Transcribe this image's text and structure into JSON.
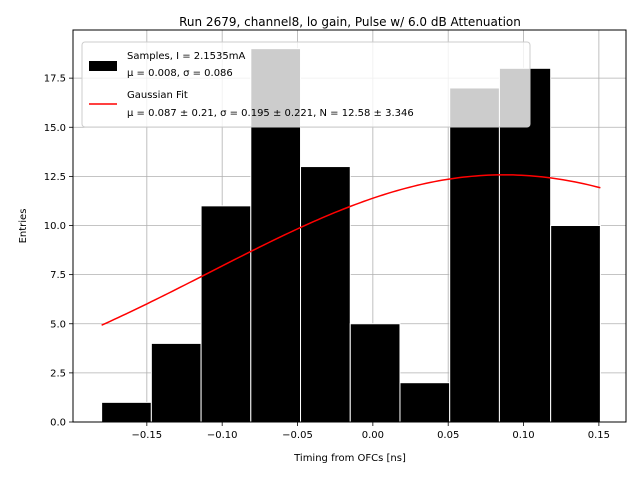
{
  "chart_data": {
    "type": "bar",
    "title": "Run 2679, channel8, lo gain, Pulse w/ 6.0 dB Attenuation",
    "xlabel": "Timing from OFCs [ns]",
    "ylabel": "Entries",
    "xlim": [
      -0.199,
      0.168
    ],
    "ylim": [
      0,
      19.95
    ],
    "grid": true,
    "bin_edges": [
      -0.18,
      -0.147,
      -0.114,
      -0.081,
      -0.048,
      -0.015,
      0.018,
      0.051,
      0.084,
      0.118,
      0.151
    ],
    "counts": [
      1,
      4,
      11,
      19,
      13,
      5,
      2,
      17,
      18,
      10
    ],
    "x_ticks": [
      -0.15,
      -0.1,
      -0.05,
      0.0,
      0.05,
      0.1,
      0.15
    ],
    "x_tick_labels": [
      "−0.15",
      "−0.10",
      "−0.05",
      "0.00",
      "0.05",
      "0.10",
      "0.15"
    ],
    "y_ticks": [
      0.0,
      2.5,
      5.0,
      7.5,
      10.0,
      12.5,
      15.0,
      17.5
    ],
    "y_tick_labels": [
      "0.0",
      "2.5",
      "5.0",
      "7.5",
      "10.0",
      "12.5",
      "15.0",
      "17.5"
    ],
    "fit": {
      "type": "gaussian",
      "mu": 0.087,
      "sigma": 0.195,
      "N": 12.58,
      "x_range": [
        -0.18,
        0.151
      ],
      "color": "#ff0000"
    },
    "bar_fill": "#000000",
    "bar_edge": "#ffffff",
    "legend": {
      "placement": "top-left",
      "entries": [
        {
          "kind": "patch",
          "line1": "Samples, I = 2.1535mA",
          "line2": "μ = 0.008, σ = 0.086"
        },
        {
          "kind": "line",
          "line1": "Gaussian Fit",
          "line2": "μ = 0.087 ± 0.21, σ = 0.195 ± 0.221, N = 12.58 ± 3.346"
        }
      ]
    }
  }
}
